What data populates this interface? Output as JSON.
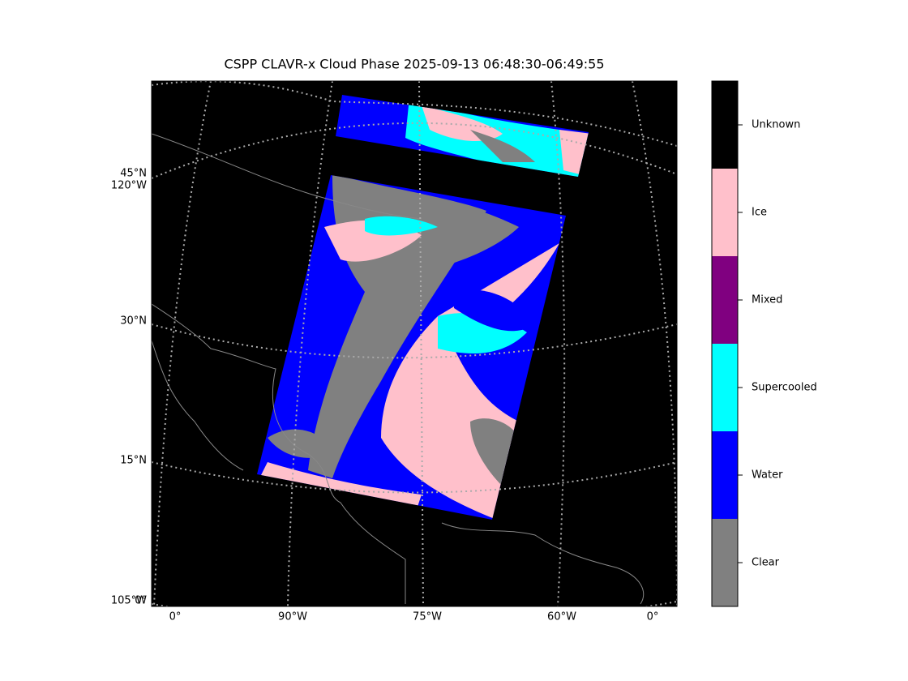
{
  "title": "CSPP CLAVR-x Cloud Phase 2025-09-13 06:48:30-06:49:55",
  "map": {
    "left_labels": [
      "45°N",
      "120°W",
      "30°N",
      "15°N",
      "105°W",
      "0°"
    ],
    "bottom_labels": [
      "0°",
      "90°W",
      "75°W",
      "60°W",
      "0°"
    ]
  },
  "colorbar": {
    "categories": [
      {
        "label": "Unknown",
        "color": "#000000"
      },
      {
        "label": "Ice",
        "color": "#ffc0cb"
      },
      {
        "label": "Mixed",
        "color": "#800080"
      },
      {
        "label": "Supercooled",
        "color": "#00ffff"
      },
      {
        "label": "Water",
        "color": "#0000ff"
      },
      {
        "label": "Clear",
        "color": "#808080"
      }
    ]
  }
}
